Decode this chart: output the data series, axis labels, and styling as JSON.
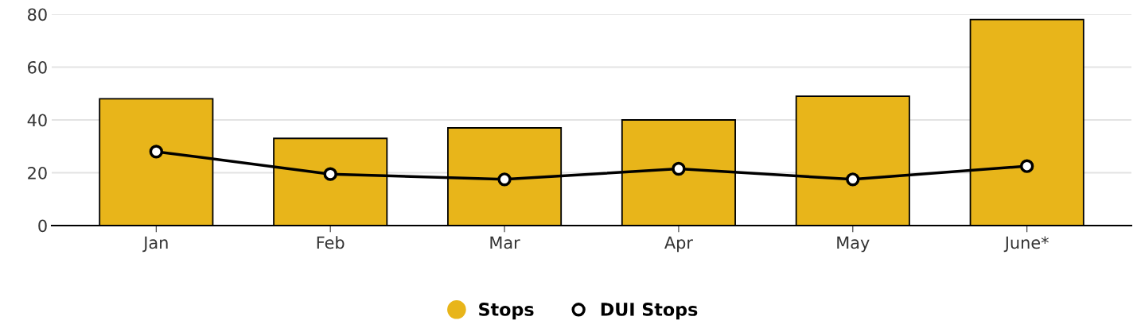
{
  "chart_data": {
    "type": "bar",
    "categories": [
      "Jan",
      "Feb",
      "Mar",
      "Apr",
      "May",
      "June*"
    ],
    "series": [
      {
        "name": "Stops",
        "color": "#e8b51a",
        "values": [
          48,
          33,
          37,
          40,
          49,
          78
        ]
      },
      {
        "name": "DUI Stops",
        "type": "line",
        "color": "#000000",
        "values": [
          28,
          19.5,
          17.5,
          21.5,
          17.5,
          22.5
        ]
      }
    ],
    "ylim": [
      0,
      80
    ],
    "yticks": [
      0,
      20,
      40,
      60,
      80
    ],
    "grid": "y",
    "legend": "bottom",
    "marker": "circle",
    "line_style": "solid"
  }
}
